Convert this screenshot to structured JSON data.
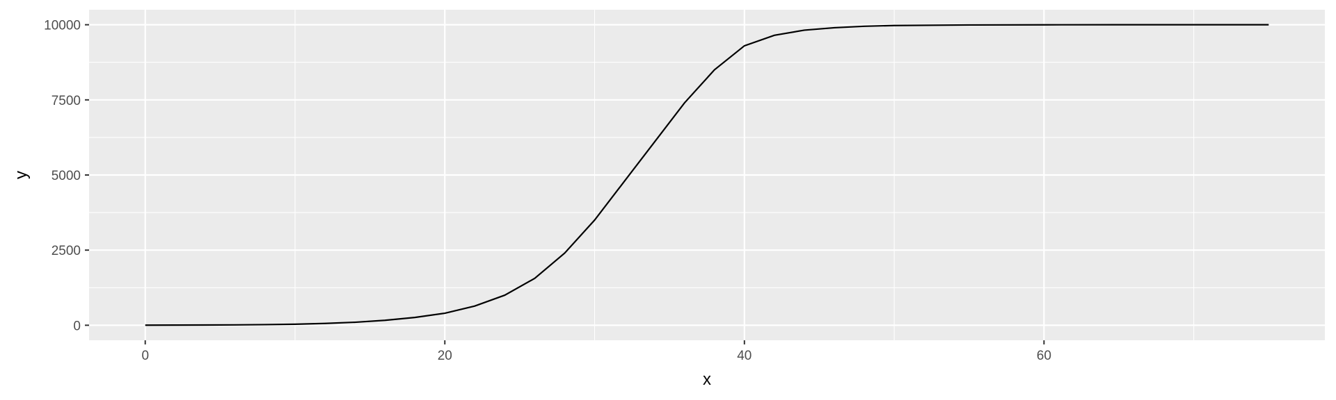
{
  "chart_data": {
    "type": "line",
    "title": "",
    "xlabel": "x",
    "ylabel": "y",
    "xlim": [
      -3.75,
      78.75
    ],
    "ylim": [
      -500,
      10500
    ],
    "x_ticks": [
      0,
      20,
      40,
      60
    ],
    "x_tick_labels": [
      "0",
      "20",
      "40",
      "60"
    ],
    "x_minor_ticks": [
      10,
      30,
      50,
      70
    ],
    "y_ticks": [
      0,
      2500,
      5000,
      7500,
      10000
    ],
    "y_tick_labels": [
      "0",
      "2500",
      "5000",
      "7500",
      "10000"
    ],
    "y_minor_ticks": [
      1250,
      3750,
      6250,
      8750
    ],
    "grid": true,
    "legend": "none",
    "colors": {
      "panel": "#ebebeb",
      "grid": "#ffffff",
      "line": "#000000",
      "tick": "#333333",
      "tick_label": "#4d4d4d"
    },
    "series": [
      {
        "x": [
          0,
          2,
          4,
          6,
          8,
          10,
          12,
          14,
          16,
          18,
          20,
          22,
          24,
          26,
          28,
          30,
          32,
          34,
          36,
          38,
          40,
          42,
          44,
          46,
          48,
          50,
          55,
          60,
          65,
          70,
          75
        ],
        "values": [
          3,
          5,
          8,
          13,
          21,
          35,
          60,
          100,
          165,
          260,
          400,
          640,
          1000,
          1560,
          2400,
          3500,
          4800,
          6100,
          7400,
          8500,
          9300,
          9650,
          9820,
          9900,
          9950,
          9975,
          9993,
          9998,
          10000,
          10000,
          10000
        ]
      }
    ]
  }
}
